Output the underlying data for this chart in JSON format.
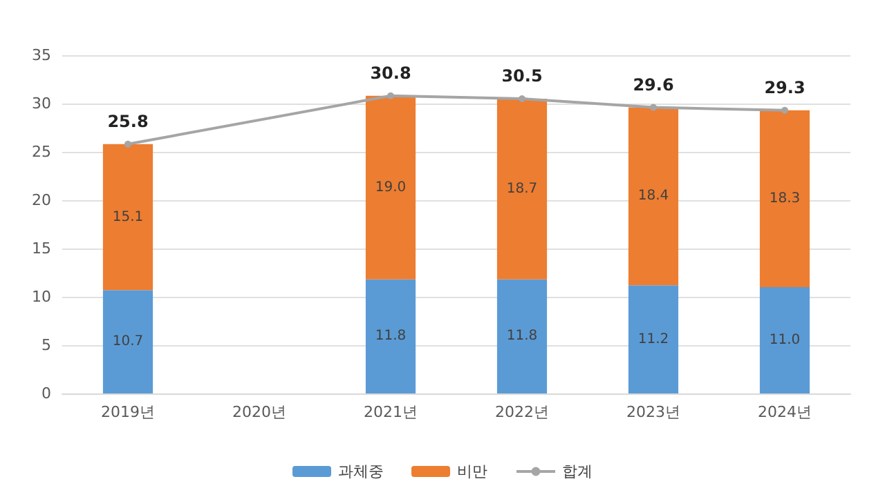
{
  "chart_data": {
    "type": "bar",
    "stacked": true,
    "categories": [
      "2019년",
      "2020년",
      "2021년",
      "2022년",
      "2023년",
      "2024년"
    ],
    "series": [
      {
        "name": "과체중",
        "color": "#5b9bd5",
        "values": [
          10.7,
          null,
          11.8,
          11.8,
          11.2,
          11.0
        ],
        "value_labels": [
          "10.7",
          null,
          "11.8",
          "11.8",
          "11.2",
          "11.0"
        ]
      },
      {
        "name": "비만",
        "color": "#ed7d31",
        "values": [
          15.1,
          null,
          19.0,
          18.7,
          18.4,
          18.3
        ],
        "value_labels": [
          "15.1",
          null,
          "19.0",
          "18.7",
          "18.4",
          "18.3"
        ]
      },
      {
        "name": "합계",
        "type": "line",
        "color": "#a5a5a5",
        "values": [
          25.8,
          null,
          30.8,
          30.5,
          29.6,
          29.3
        ]
      }
    ],
    "ylim": [
      0,
      35
    ],
    "yticks": [
      0,
      5,
      10,
      15,
      20,
      25,
      30,
      35
    ],
    "grid": "y",
    "legend": "bottom",
    "data_labels": true,
    "marker": "circle",
    "line_style": "solid"
  }
}
